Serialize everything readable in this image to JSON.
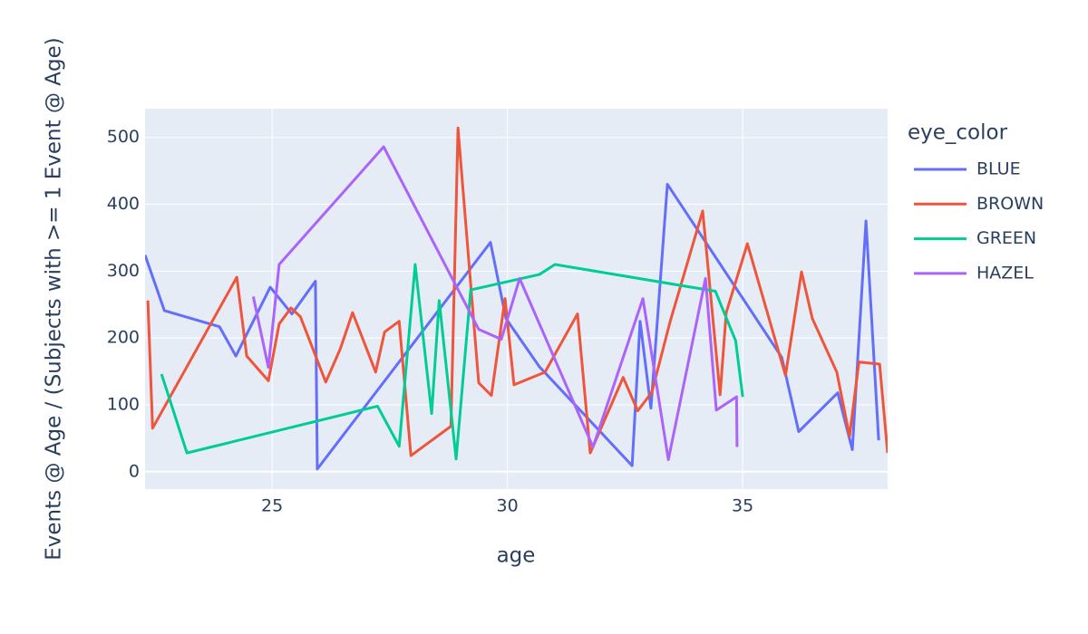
{
  "chart_data": {
    "type": "line",
    "x_label": "age",
    "y_label": "Events @ Age / (Subjects with >= 1 Event @ Age)",
    "legend_title": "eye_color",
    "legend_position": "right",
    "grid": true,
    "xlim": [
      22.3,
      38.08
    ],
    "ylim": [
      -26,
      543
    ],
    "xticks": [
      25,
      30,
      35
    ],
    "yticks": [
      0,
      100,
      200,
      300,
      400,
      500
    ],
    "series": [
      {
        "name": "BLUE",
        "color": "#636efa",
        "x": [
          22.3,
          22.71,
          23.88,
          24.23,
          24.96,
          25.42,
          25.92,
          25.96,
          29.64,
          29.97,
          30.68,
          32.65,
          32.82,
          33.05,
          33.4,
          35.83,
          36.19,
          37.02,
          37.33,
          37.62,
          37.89
        ],
        "values": [
          324,
          241,
          217,
          173,
          276,
          236,
          285,
          4,
          343,
          229,
          157,
          9,
          225,
          95,
          430,
          171,
          60,
          118,
          33,
          375,
          47
        ]
      },
      {
        "name": "BROWN",
        "color": "#EF553B",
        "x": [
          22.36,
          22.46,
          24.25,
          24.46,
          24.92,
          25.15,
          25.4,
          25.6,
          26.14,
          26.45,
          26.71,
          27.2,
          27.39,
          27.7,
          27.95,
          28.8,
          28.95,
          29.39,
          29.66,
          29.95,
          30.14,
          30.8,
          31.49,
          31.76,
          32.46,
          32.77,
          33.07,
          33.46,
          34.15,
          34.52,
          34.65,
          35.1,
          35.91,
          36.25,
          36.48,
          37.0,
          37.27,
          37.47,
          37.91,
          38.08
        ],
        "values": [
          256,
          65,
          291,
          173,
          136,
          221,
          245,
          232,
          134,
          184,
          238,
          149,
          209,
          225,
          24,
          68,
          514,
          133,
          114,
          259,
          130,
          149,
          236,
          28,
          141,
          91,
          119,
          225,
          390,
          115,
          238,
          341,
          144,
          299,
          229,
          149,
          53,
          164,
          161,
          28
        ]
      },
      {
        "name": "GREEN",
        "color": "#00cc96",
        "x": [
          22.65,
          23.19,
          27.24,
          27.7,
          28.04,
          28.39,
          28.55,
          28.91,
          29.22,
          30.68,
          31.01,
          34.42,
          34.85,
          35.0
        ],
        "values": [
          146,
          28,
          98,
          38,
          310,
          87,
          256,
          19,
          272,
          295,
          310,
          270,
          196,
          112
        ]
      },
      {
        "name": "HAZEL",
        "color": "#ab63fa",
        "x": [
          24.6,
          24.92,
          25.15,
          27.37,
          29.39,
          29.87,
          30.26,
          31.82,
          32.88,
          33.42,
          34.21,
          34.44,
          34.87,
          34.88
        ],
        "values": [
          262,
          156,
          310,
          486,
          213,
          198,
          289,
          37,
          259,
          18,
          289,
          92,
          112,
          37
        ]
      }
    ]
  }
}
